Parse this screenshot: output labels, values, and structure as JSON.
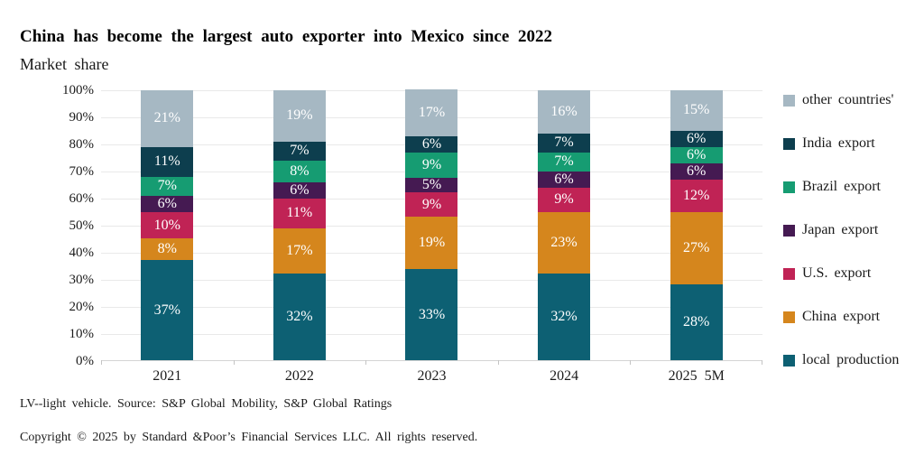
{
  "title": "China has become the largest auto exporter into Mexico since 2022",
  "subtitle": "Market share",
  "footnote_source": "LV--light vehicle.  Source:  S&P Global Mobility,  S&P Global Ratings",
  "footnote_copyright": "Copyright © 2025 by Standard  &Poor’s Financial Services LLC. All rights reserved.",
  "chart_data": {
    "type": "bar",
    "stacked": true,
    "percent_stacked": true,
    "title": "China has become the largest auto exporter into Mexico since 2022",
    "subtitle": "Market share",
    "categories": [
      "2021",
      "2022",
      "2023",
      "2024",
      "2025 5M"
    ],
    "series": [
      {
        "name": "local production",
        "color": "#0d6073",
        "values": [
          37,
          32,
          33,
          32,
          28
        ]
      },
      {
        "name": "China export",
        "color": "#d5861d",
        "values": [
          8,
          17,
          19,
          23,
          27
        ]
      },
      {
        "name": "U.S. export",
        "color": "#c02355",
        "values": [
          10,
          11,
          9,
          9,
          12
        ]
      },
      {
        "name": "Japan export",
        "color": "#451a52",
        "values": [
          6,
          6,
          5,
          6,
          6
        ]
      },
      {
        "name": "Brazil export",
        "color": "#169c72",
        "values": [
          7,
          8,
          9,
          7,
          6
        ]
      },
      {
        "name": "India export",
        "color": "#0d3e4e",
        "values": [
          11,
          7,
          6,
          7,
          6
        ]
      },
      {
        "name": "other countries'",
        "color": "#a6b8c3",
        "values": [
          21,
          19,
          17,
          16,
          15
        ]
      }
    ],
    "value_label_format": "{v}%",
    "value_label_color": "#ffffff",
    "ylim": [
      0,
      100
    ],
    "ytick_step": 10,
    "ytick_labels": [
      "0%",
      "10%",
      "20%",
      "30%",
      "40%",
      "50%",
      "60%",
      "70%",
      "80%",
      "90%",
      "100%"
    ],
    "grid": true,
    "gridline_color": "#e9e9e9",
    "legend_position": "right",
    "legend_order_top_to_bottom": [
      "other countries'",
      "India export",
      "Brazil export",
      "Japan export",
      "U.S. export",
      "China export",
      "local production"
    ]
  }
}
